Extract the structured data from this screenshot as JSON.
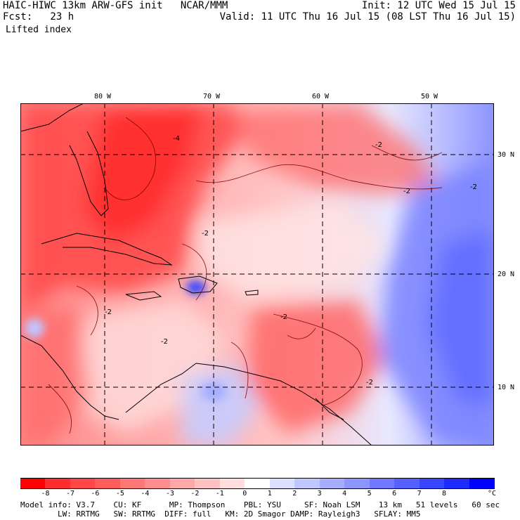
{
  "header": {
    "line1_left": "HAIC-HIWC 13km ARW-GFS init   NCAR/MMM",
    "line1_right": "Init: 12 UTC Wed 15 Jul 15",
    "line2_left": "Fcst:   23 h",
    "line2_right": "Valid: 11 UTC Thu 16 Jul 15 (08 LST Thu 16 Jul 15)",
    "field": "Lifted index"
  },
  "map": {
    "lon_labels": [
      "80 W",
      "70 W",
      "60 W",
      "50 W"
    ],
    "lat_labels": [
      "30 N",
      "20 N",
      "10 N"
    ],
    "contour_labels": [
      "-4",
      "-2",
      "-2",
      "-2",
      "-2",
      "-2",
      "-2",
      "-2",
      "-2"
    ]
  },
  "colorbar": {
    "colors": [
      "#ff0000",
      "#ff2d2d",
      "#ff4545",
      "#ff5c5c",
      "#ff7676",
      "#ff8f8f",
      "#ffa8a8",
      "#ffc2c2",
      "#ffdede",
      "#ffffff",
      "#dde0ff",
      "#c0c6ff",
      "#a6adff",
      "#8d95ff",
      "#7079ff",
      "#5460ff",
      "#3845ff",
      "#1c2aff",
      "#0000ff"
    ],
    "labels": [
      "-8",
      "-7",
      "-6",
      "-5",
      "-4",
      "-3",
      "-2",
      "-1",
      "0",
      "1",
      "2",
      "3",
      "4",
      "5",
      "6",
      "7",
      "8"
    ],
    "unit": "°C"
  },
  "footer": {
    "line1": "Model info: V3.7    CU: KF      MP: Thompson    PBL: YSU     SF: Noah LSM    13 km   51 levels   60 sec",
    "line2": "        LW: RRTMG   SW: RRTMG  DIFF: full   KM: 2D Smagor DAMP: Rayleigh3   SFLAY: MM5"
  }
}
